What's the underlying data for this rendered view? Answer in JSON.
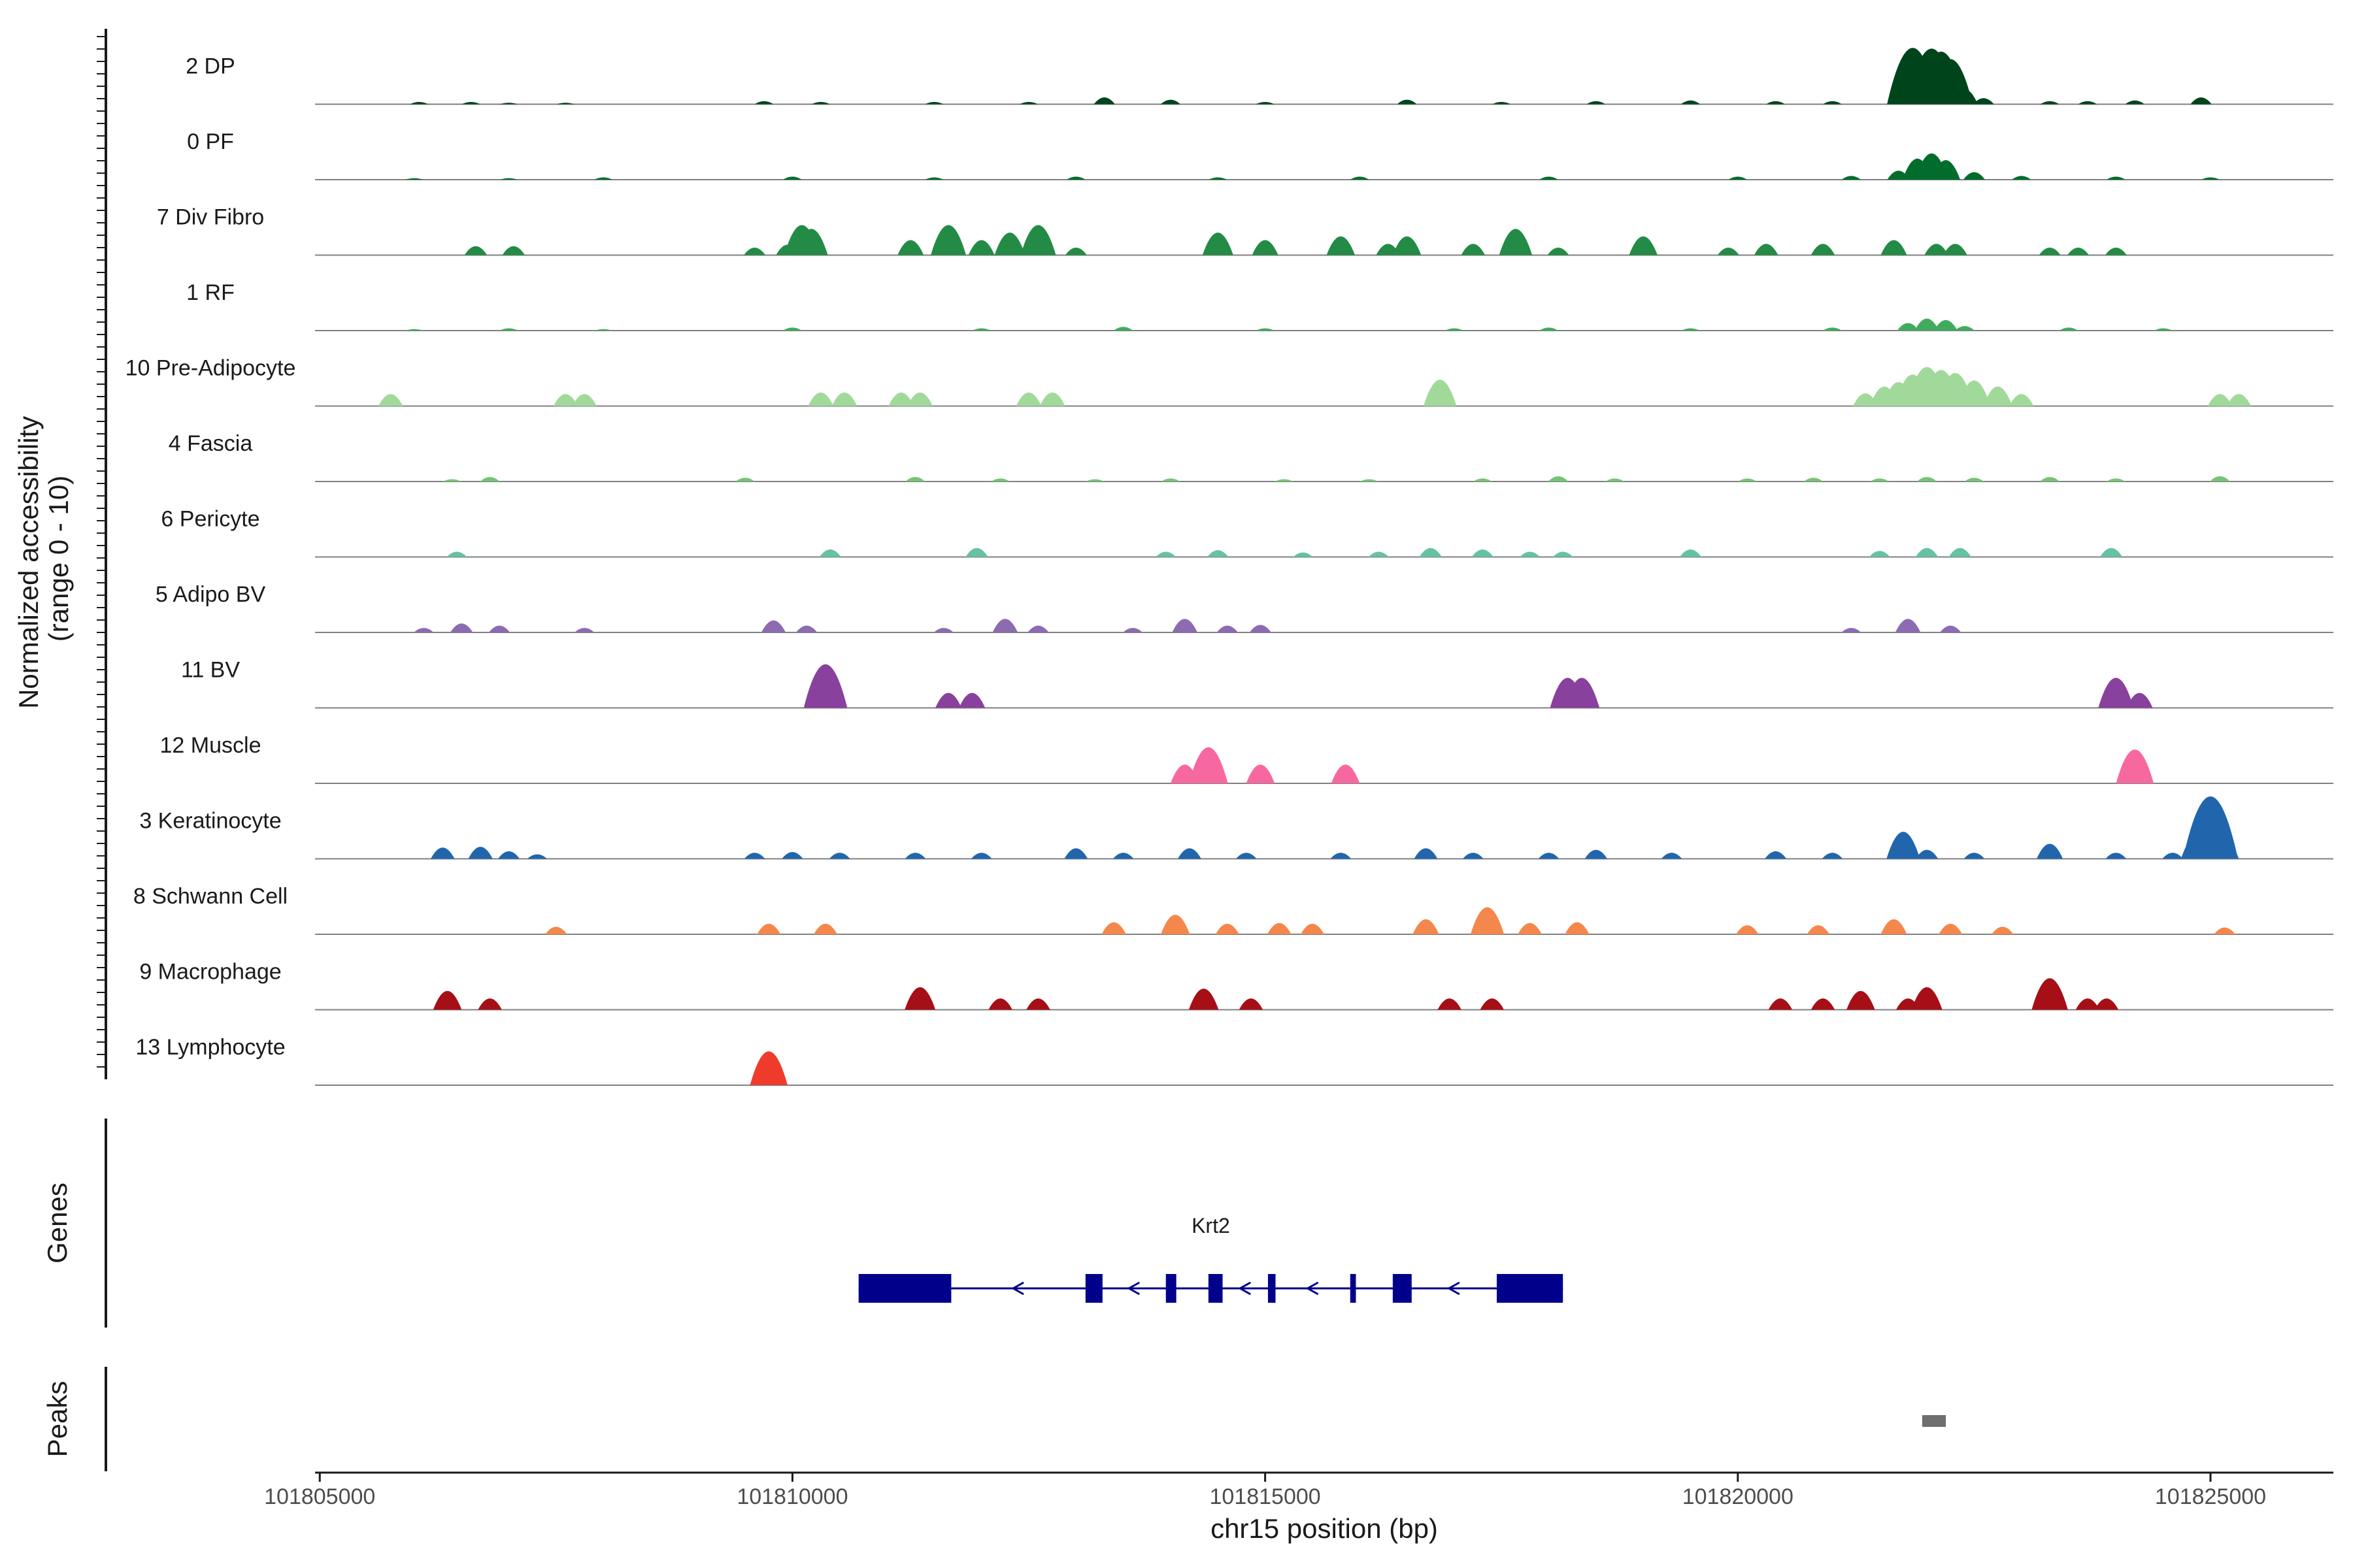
{
  "chart_data": {
    "type": "area",
    "title": "",
    "chromosome": "chr15",
    "xlabel": "chr15 position (bp)",
    "ylabel": "Normalized accessibility (range 0 - 10)",
    "ylabel_lines": [
      "Normalized accessibility",
      "(range 0 - 10)"
    ],
    "ylim": [
      0,
      10
    ],
    "xlim": [
      101804950,
      101826300
    ],
    "x_ticks": [
      101805000,
      101810000,
      101815000,
      101820000,
      101825000
    ],
    "x_tick_labels": [
      "101805000",
      "101810000",
      "101815000",
      "101820000",
      "101825000"
    ],
    "genes_label": "Genes",
    "peaks_label": "Peaks",
    "series": [
      {
        "name": "2 DP",
        "color": "#00441b",
        "points": [
          [
            101806050,
            0.3
          ],
          [
            101806600,
            0.3
          ],
          [
            101807000,
            0.2
          ],
          [
            101807600,
            0.2
          ],
          [
            101809700,
            0.4
          ],
          [
            101810300,
            0.3
          ],
          [
            101811500,
            0.3
          ],
          [
            101812500,
            0.3
          ],
          [
            101813300,
            0.9
          ],
          [
            101814000,
            0.6
          ],
          [
            101815000,
            0.3
          ],
          [
            101816500,
            0.6
          ],
          [
            101817500,
            0.3
          ],
          [
            101818500,
            0.4
          ],
          [
            101819500,
            0.5
          ],
          [
            101820400,
            0.4
          ],
          [
            101821000,
            0.4
          ],
          [
            101821750,
            2.2
          ],
          [
            101821850,
            7.5
          ],
          [
            101821950,
            5.5
          ],
          [
            101822050,
            7.4
          ],
          [
            101822150,
            7.0
          ],
          [
            101822250,
            6.0
          ],
          [
            101822400,
            2.0
          ],
          [
            101822600,
            0.8
          ],
          [
            101823300,
            0.4
          ],
          [
            101823700,
            0.4
          ],
          [
            101824200,
            0.5
          ],
          [
            101824900,
            0.9
          ]
        ]
      },
      {
        "name": "0 PF",
        "color": "#006d2c",
        "points": [
          [
            101806000,
            0.2
          ],
          [
            101807000,
            0.2
          ],
          [
            101808000,
            0.3
          ],
          [
            101810000,
            0.4
          ],
          [
            101811500,
            0.3
          ],
          [
            101813000,
            0.4
          ],
          [
            101814500,
            0.3
          ],
          [
            101816000,
            0.4
          ],
          [
            101818000,
            0.4
          ],
          [
            101820000,
            0.4
          ],
          [
            101821200,
            0.5
          ],
          [
            101821700,
            1.2
          ],
          [
            101821900,
            2.8
          ],
          [
            101822050,
            3.5
          ],
          [
            101822200,
            2.6
          ],
          [
            101822500,
            1.0
          ],
          [
            101823000,
            0.5
          ],
          [
            101824000,
            0.4
          ],
          [
            101825000,
            0.3
          ]
        ]
      },
      {
        "name": "7 Div Fibro",
        "color": "#238b45",
        "points": [
          [
            101806650,
            1.2
          ],
          [
            101807050,
            1.2
          ],
          [
            101809600,
            1.0
          ],
          [
            101809950,
            1.4
          ],
          [
            101810100,
            4.0
          ],
          [
            101810200,
            3.5
          ],
          [
            101811250,
            2.0
          ],
          [
            101811650,
            4.0
          ],
          [
            101812000,
            2.0
          ],
          [
            101812300,
            3.0
          ],
          [
            101812600,
            4.0
          ],
          [
            101813000,
            1.0
          ],
          [
            101814500,
            3.0
          ],
          [
            101815000,
            2.0
          ],
          [
            101815800,
            2.5
          ],
          [
            101816300,
            1.5
          ],
          [
            101816500,
            2.5
          ],
          [
            101817200,
            1.5
          ],
          [
            101817650,
            3.5
          ],
          [
            101818100,
            1.0
          ],
          [
            101819000,
            2.5
          ],
          [
            101819900,
            1.0
          ],
          [
            101820300,
            1.5
          ],
          [
            101820900,
            1.5
          ],
          [
            101821650,
            2.0
          ],
          [
            101822100,
            1.5
          ],
          [
            101822300,
            1.5
          ],
          [
            101823300,
            1.0
          ],
          [
            101823600,
            1.0
          ],
          [
            101824000,
            1.0
          ]
        ]
      },
      {
        "name": "1 RF",
        "color": "#41ab5d",
        "points": [
          [
            101806000,
            0.2
          ],
          [
            101807000,
            0.3
          ],
          [
            101808000,
            0.2
          ],
          [
            101810000,
            0.4
          ],
          [
            101812000,
            0.3
          ],
          [
            101813500,
            0.5
          ],
          [
            101815000,
            0.3
          ],
          [
            101817000,
            0.3
          ],
          [
            101818000,
            0.4
          ],
          [
            101819500,
            0.3
          ],
          [
            101821000,
            0.4
          ],
          [
            101821800,
            1.0
          ],
          [
            101822000,
            1.6
          ],
          [
            101822200,
            1.4
          ],
          [
            101822400,
            0.6
          ],
          [
            101823500,
            0.4
          ],
          [
            101824500,
            0.3
          ]
        ]
      },
      {
        "name": "10 Pre-Adipocyte",
        "color": "#a1d99b",
        "points": [
          [
            101805750,
            1.6
          ],
          [
            101807600,
            1.6
          ],
          [
            101807800,
            1.6
          ],
          [
            101810300,
            1.8
          ],
          [
            101810550,
            1.8
          ],
          [
            101811150,
            1.8
          ],
          [
            101811350,
            1.8
          ],
          [
            101812500,
            1.8
          ],
          [
            101812750,
            1.8
          ],
          [
            101816850,
            3.5
          ],
          [
            101821350,
            1.7
          ],
          [
            101821550,
            2.6
          ],
          [
            101821700,
            3.2
          ],
          [
            101821850,
            4.2
          ],
          [
            101822000,
            5.2
          ],
          [
            101822150,
            4.8
          ],
          [
            101822300,
            4.4
          ],
          [
            101822500,
            3.4
          ],
          [
            101822750,
            2.6
          ],
          [
            101823000,
            1.6
          ],
          [
            101825100,
            1.6
          ],
          [
            101825300,
            1.6
          ]
        ]
      },
      {
        "name": "4 Fascia",
        "color": "#74c476",
        "points": [
          [
            101806400,
            0.3
          ],
          [
            101806800,
            0.6
          ],
          [
            101809500,
            0.5
          ],
          [
            101811300,
            0.6
          ],
          [
            101812200,
            0.4
          ],
          [
            101813200,
            0.3
          ],
          [
            101814000,
            0.4
          ],
          [
            101815200,
            0.3
          ],
          [
            101816100,
            0.3
          ],
          [
            101817300,
            0.4
          ],
          [
            101818100,
            0.7
          ],
          [
            101818700,
            0.4
          ],
          [
            101820100,
            0.4
          ],
          [
            101820800,
            0.5
          ],
          [
            101821500,
            0.4
          ],
          [
            101822000,
            0.6
          ],
          [
            101822500,
            0.5
          ],
          [
            101823300,
            0.6
          ],
          [
            101824000,
            0.4
          ],
          [
            101825100,
            0.7
          ]
        ]
      },
      {
        "name": "6 Pericyte",
        "color": "#66c2a4",
        "points": [
          [
            101806450,
            0.7
          ],
          [
            101810400,
            1.0
          ],
          [
            101811950,
            1.2
          ],
          [
            101813950,
            0.7
          ],
          [
            101814500,
            0.9
          ],
          [
            101815400,
            0.6
          ],
          [
            101816200,
            0.7
          ],
          [
            101816750,
            1.2
          ],
          [
            101817300,
            1.0
          ],
          [
            101817800,
            0.7
          ],
          [
            101818150,
            0.7
          ],
          [
            101819500,
            1.0
          ],
          [
            101821500,
            0.8
          ],
          [
            101822000,
            1.2
          ],
          [
            101822350,
            1.2
          ],
          [
            101823950,
            1.2
          ]
        ]
      },
      {
        "name": "5 Adipo BV",
        "color": "#8c6bb1",
        "points": [
          [
            101806100,
            0.6
          ],
          [
            101806500,
            1.2
          ],
          [
            101806900,
            0.9
          ],
          [
            101807800,
            0.6
          ],
          [
            101809800,
            1.6
          ],
          [
            101810150,
            0.9
          ],
          [
            101811600,
            0.6
          ],
          [
            101812250,
            1.8
          ],
          [
            101812600,
            0.9
          ],
          [
            101813600,
            0.6
          ],
          [
            101814150,
            1.8
          ],
          [
            101814600,
            0.9
          ],
          [
            101814950,
            1.0
          ],
          [
            101821200,
            0.6
          ],
          [
            101821800,
            1.8
          ],
          [
            101822250,
            0.9
          ]
        ]
      },
      {
        "name": "11 BV",
        "color": "#88419d",
        "points": [
          [
            101810350,
            5.8
          ],
          [
            101811650,
            2.0
          ],
          [
            101811900,
            2.0
          ],
          [
            101818200,
            4.0
          ],
          [
            101818350,
            4.0
          ],
          [
            101824000,
            4.0
          ],
          [
            101824250,
            2.0
          ]
        ]
      },
      {
        "name": "12 Muscle",
        "color": "#f768a1",
        "points": [
          [
            101814150,
            2.5
          ],
          [
            101814400,
            4.8
          ],
          [
            101814950,
            2.5
          ],
          [
            101815850,
            2.5
          ],
          [
            101824200,
            4.5
          ]
        ]
      },
      {
        "name": "3 Keratinocyte",
        "color": "#2166ac",
        "points": [
          [
            101806300,
            1.5
          ],
          [
            101806700,
            1.6
          ],
          [
            101807000,
            1.0
          ],
          [
            101807300,
            0.6
          ],
          [
            101809600,
            0.8
          ],
          [
            101810000,
            0.9
          ],
          [
            101810500,
            0.8
          ],
          [
            101811300,
            0.8
          ],
          [
            101812000,
            0.8
          ],
          [
            101813000,
            1.4
          ],
          [
            101813500,
            0.8
          ],
          [
            101814200,
            1.4
          ],
          [
            101814800,
            0.8
          ],
          [
            101815800,
            0.8
          ],
          [
            101816700,
            1.4
          ],
          [
            101817200,
            0.8
          ],
          [
            101818000,
            0.8
          ],
          [
            101818500,
            1.2
          ],
          [
            101819300,
            0.8
          ],
          [
            101820400,
            1.0
          ],
          [
            101821000,
            0.8
          ],
          [
            101821750,
            3.6
          ],
          [
            101822000,
            1.2
          ],
          [
            101822500,
            0.8
          ],
          [
            101823300,
            2.0
          ],
          [
            101824000,
            0.8
          ],
          [
            101824600,
            0.8
          ],
          [
            101824850,
            3.0
          ],
          [
            101825000,
            8.3
          ],
          [
            101825150,
            2.5
          ]
        ]
      },
      {
        "name": "8 Schwann Cell",
        "color": "#f4874b",
        "points": [
          [
            101807500,
            1.0
          ],
          [
            101809750,
            1.4
          ],
          [
            101810350,
            1.4
          ],
          [
            101813400,
            1.6
          ],
          [
            101814050,
            2.6
          ],
          [
            101814600,
            1.4
          ],
          [
            101815150,
            1.5
          ],
          [
            101815500,
            1.4
          ],
          [
            101816700,
            2.0
          ],
          [
            101817350,
            3.6
          ],
          [
            101817800,
            1.5
          ],
          [
            101818300,
            1.6
          ],
          [
            101820100,
            1.2
          ],
          [
            101820850,
            1.2
          ],
          [
            101821650,
            2.0
          ],
          [
            101822250,
            1.4
          ],
          [
            101822800,
            1.0
          ],
          [
            101825150,
            0.9
          ]
        ]
      },
      {
        "name": "9 Macrophage",
        "color": "#a50f15",
        "points": [
          [
            101806350,
            2.5
          ],
          [
            101806800,
            1.5
          ],
          [
            101811350,
            3.0
          ],
          [
            101812200,
            1.5
          ],
          [
            101812600,
            1.5
          ],
          [
            101814350,
            2.8
          ],
          [
            101814850,
            1.5
          ],
          [
            101816950,
            1.5
          ],
          [
            101817400,
            1.5
          ],
          [
            101820450,
            1.5
          ],
          [
            101820900,
            1.5
          ],
          [
            101821300,
            2.5
          ],
          [
            101821800,
            1.5
          ],
          [
            101822000,
            3.0
          ],
          [
            101823300,
            4.2
          ],
          [
            101823700,
            1.5
          ],
          [
            101823900,
            1.5
          ]
        ]
      },
      {
        "name": "13 Lymphocyte",
        "color": "#ef3b2c",
        "points": [
          [
            101809750,
            4.5
          ]
        ]
      }
    ],
    "genes": [
      {
        "name": "Krt2",
        "strand": "-",
        "start": 101810700,
        "end": 101818150,
        "exons": [
          [
            101810700,
            101811680
          ],
          [
            101813100,
            101813280
          ],
          [
            101813950,
            101814060
          ],
          [
            101814400,
            101814550
          ],
          [
            101815030,
            101815110
          ],
          [
            101815900,
            101815960
          ],
          [
            101816350,
            101816550
          ],
          [
            101817450,
            101818150
          ]
        ]
      }
    ],
    "peaks": [
      {
        "start": 101821950,
        "end": 101822200
      }
    ]
  }
}
